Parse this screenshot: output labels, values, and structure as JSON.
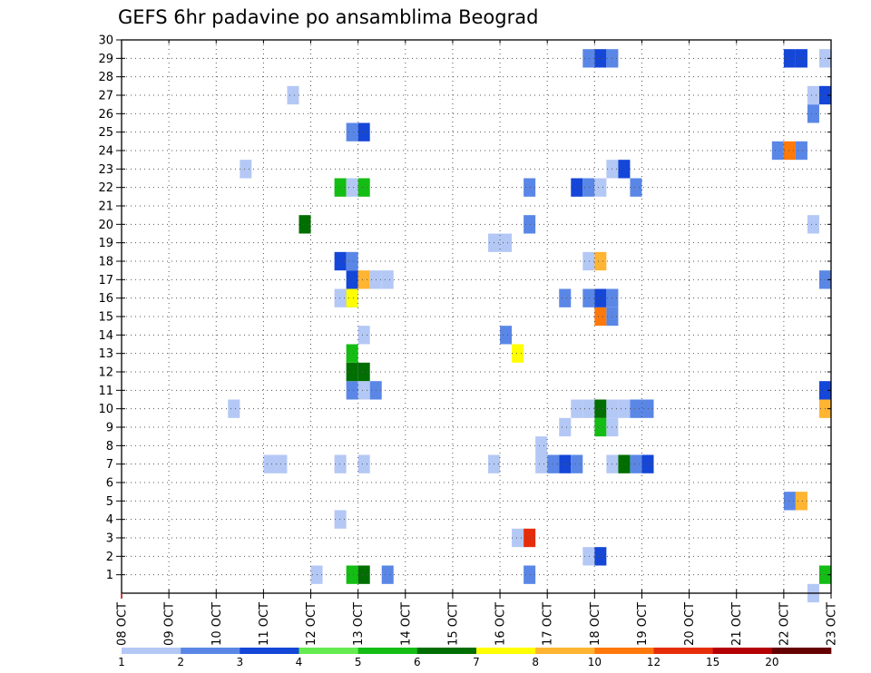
{
  "chart_data": {
    "type": "heatmap",
    "title": "GEFS 6hr padavine po ansamblima Beograd",
    "x_tick_labels": [
      "08 OCT",
      "09 OCT",
      "10 OCT",
      "11 OCT",
      "12 OCT",
      "13 OCT",
      "14 OCT",
      "15 OCT",
      "16 OCT",
      "17 OCT",
      "18 OCT",
      "19 OCT",
      "20 OCT",
      "21 OCT",
      "22 OCT",
      "23 OCT"
    ],
    "y_tick_labels": [
      "1",
      "2",
      "3",
      "4",
      "5",
      "6",
      "7",
      "8",
      "9",
      "10",
      "11",
      "12",
      "13",
      "14",
      "15",
      "16",
      "17",
      "18",
      "19",
      "20",
      "21",
      "22",
      "23",
      "24",
      "25",
      "26",
      "27",
      "28",
      "29",
      "30"
    ],
    "xlim": [
      0,
      60
    ],
    "ylim": [
      0,
      30
    ],
    "grid": true,
    "legend": {
      "placement": "bottom",
      "labels": [
        "1",
        "2",
        "3",
        "4",
        "5",
        "6",
        "7",
        "8",
        "10",
        "12",
        "15",
        "20"
      ],
      "colors": [
        "#b4c8f5",
        "#5a87e6",
        "#1446d7",
        "#64eb50",
        "#14bd14",
        "#006e00",
        "#ffff00",
        "#ffb432",
        "#ff780a",
        "#e62d0a",
        "#b40000",
        "#640000"
      ]
    },
    "cells": [
      {
        "x": 22.5,
        "y": 1,
        "level": 2
      },
      {
        "x": 16.5,
        "y": 1,
        "level": 1
      },
      {
        "x": 19.5,
        "y": 1,
        "level": 5
      },
      {
        "x": 20.5,
        "y": 1,
        "level": 6
      },
      {
        "x": 34.5,
        "y": 1,
        "level": 2
      },
      {
        "x": 59.5,
        "y": 1,
        "level": 5
      },
      {
        "x": 58.5,
        "y": 0,
        "level": 1
      },
      {
        "x": 39.5,
        "y": 2,
        "level": 1
      },
      {
        "x": 40.5,
        "y": 2,
        "level": 3
      },
      {
        "x": 33.5,
        "y": 3,
        "level": 1
      },
      {
        "x": 34.5,
        "y": 3,
        "level": 12
      },
      {
        "x": 18.5,
        "y": 4,
        "level": 1
      },
      {
        "x": 56.5,
        "y": 5,
        "level": 2
      },
      {
        "x": 57.5,
        "y": 5,
        "level": 8
      },
      {
        "x": 12.5,
        "y": 7,
        "level": 1
      },
      {
        "x": 13.5,
        "y": 7,
        "level": 1
      },
      {
        "x": 18.5,
        "y": 7,
        "level": 1
      },
      {
        "x": 20.5,
        "y": 7,
        "level": 1
      },
      {
        "x": 31.5,
        "y": 7,
        "level": 1
      },
      {
        "x": 35.5,
        "y": 7,
        "level": 1
      },
      {
        "x": 36.5,
        "y": 7,
        "level": 2
      },
      {
        "x": 37.5,
        "y": 7,
        "level": 3
      },
      {
        "x": 38.5,
        "y": 7,
        "level": 2
      },
      {
        "x": 41.5,
        "y": 7,
        "level": 1
      },
      {
        "x": 42.5,
        "y": 7,
        "level": 6
      },
      {
        "x": 43.5,
        "y": 7,
        "level": 2
      },
      {
        "x": 44.5,
        "y": 7,
        "level": 3
      },
      {
        "x": 35.5,
        "y": 8,
        "level": 1
      },
      {
        "x": 37.5,
        "y": 9,
        "level": 1
      },
      {
        "x": 40.5,
        "y": 9,
        "level": 5
      },
      {
        "x": 41.5,
        "y": 9,
        "level": 1
      },
      {
        "x": 9.5,
        "y": 10,
        "level": 1
      },
      {
        "x": 38.5,
        "y": 10,
        "level": 1
      },
      {
        "x": 39.5,
        "y": 10,
        "level": 1
      },
      {
        "x": 40.5,
        "y": 10,
        "level": 6
      },
      {
        "x": 41.5,
        "y": 10,
        "level": 1
      },
      {
        "x": 42.5,
        "y": 10,
        "level": 1
      },
      {
        "x": 43.5,
        "y": 10,
        "level": 2
      },
      {
        "x": 44.5,
        "y": 10,
        "level": 2
      },
      {
        "x": 59.5,
        "y": 10,
        "level": 8
      },
      {
        "x": 19.5,
        "y": 11,
        "level": 2
      },
      {
        "x": 20.5,
        "y": 11,
        "level": 1
      },
      {
        "x": 21.5,
        "y": 11,
        "level": 2
      },
      {
        "x": 59.5,
        "y": 11,
        "level": 3
      },
      {
        "x": 19.5,
        "y": 12,
        "level": 6
      },
      {
        "x": 20.5,
        "y": 12,
        "level": 6
      },
      {
        "x": 19.5,
        "y": 13,
        "level": 5
      },
      {
        "x": 33.5,
        "y": 13,
        "level": 7
      },
      {
        "x": 20.5,
        "y": 14,
        "level": 1
      },
      {
        "x": 32.5,
        "y": 14,
        "level": 2
      },
      {
        "x": 40.5,
        "y": 15,
        "level": 10
      },
      {
        "x": 41.5,
        "y": 15,
        "level": 2
      },
      {
        "x": 18.5,
        "y": 16,
        "level": 1
      },
      {
        "x": 19.5,
        "y": 16,
        "level": 2
      },
      {
        "x": 19.5,
        "y": 16,
        "level": 7
      },
      {
        "x": 37.5,
        "y": 16,
        "level": 2
      },
      {
        "x": 39.5,
        "y": 16,
        "level": 2
      },
      {
        "x": 40.5,
        "y": 16,
        "level": 3
      },
      {
        "x": 41.5,
        "y": 16,
        "level": 2
      },
      {
        "x": 19.5,
        "y": 17,
        "level": 3
      },
      {
        "x": 20.5,
        "y": 17,
        "level": 8
      },
      {
        "x": 21.5,
        "y": 17,
        "level": 1
      },
      {
        "x": 22.5,
        "y": 17,
        "level": 1
      },
      {
        "x": 59.5,
        "y": 17,
        "level": 2
      },
      {
        "x": 18.5,
        "y": 18,
        "level": 3
      },
      {
        "x": 19.5,
        "y": 18,
        "level": 2
      },
      {
        "x": 39.5,
        "y": 18,
        "level": 1
      },
      {
        "x": 40.5,
        "y": 18,
        "level": 8
      },
      {
        "x": 31.5,
        "y": 19,
        "level": 1
      },
      {
        "x": 32.5,
        "y": 19,
        "level": 1
      },
      {
        "x": 15.5,
        "y": 20,
        "level": 6
      },
      {
        "x": 34.5,
        "y": 20,
        "level": 2
      },
      {
        "x": 58.5,
        "y": 20,
        "level": 1
      },
      {
        "x": 18.5,
        "y": 22,
        "level": 5
      },
      {
        "x": 19.5,
        "y": 22,
        "level": 1
      },
      {
        "x": 20.5,
        "y": 22,
        "level": 5
      },
      {
        "x": 34.5,
        "y": 22,
        "level": 2
      },
      {
        "x": 38.5,
        "y": 22,
        "level": 3
      },
      {
        "x": 39.5,
        "y": 22,
        "level": 2
      },
      {
        "x": 40.5,
        "y": 22,
        "level": 1
      },
      {
        "x": 43.5,
        "y": 22,
        "level": 2
      },
      {
        "x": 10.5,
        "y": 23,
        "level": 1
      },
      {
        "x": 41.5,
        "y": 23,
        "level": 1
      },
      {
        "x": 42.5,
        "y": 23,
        "level": 3
      },
      {
        "x": 55.5,
        "y": 24,
        "level": 2
      },
      {
        "x": 56.5,
        "y": 24,
        "level": 10
      },
      {
        "x": 57.5,
        "y": 24,
        "level": 2
      },
      {
        "x": 19.5,
        "y": 25,
        "level": 2
      },
      {
        "x": 20.5,
        "y": 25,
        "level": 3
      },
      {
        "x": 58.5,
        "y": 26,
        "level": 2
      },
      {
        "x": 14.5,
        "y": 27,
        "level": 1
      },
      {
        "x": 58.5,
        "y": 27,
        "level": 1
      },
      {
        "x": 59.5,
        "y": 27,
        "level": 3
      },
      {
        "x": 39.5,
        "y": 29,
        "level": 2
      },
      {
        "x": 40.5,
        "y": 29,
        "level": 3
      },
      {
        "x": 41.5,
        "y": 29,
        "level": 2
      },
      {
        "x": 56.5,
        "y": 29,
        "level": 3
      },
      {
        "x": 57.5,
        "y": 29,
        "level": 3
      },
      {
        "x": 59.5,
        "y": 29,
        "level": 1
      }
    ]
  }
}
